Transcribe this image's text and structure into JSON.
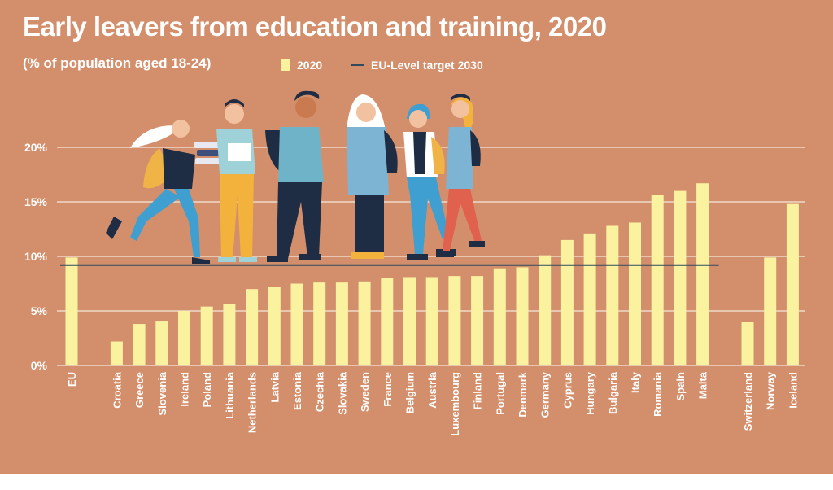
{
  "title": "Early leavers from education and training, 2020",
  "subtitle": "(% of population aged 18-24)",
  "legend": {
    "bar_label": "2020",
    "line_label": "EU-Level target 2030"
  },
  "colors": {
    "background": "#d38f6c",
    "bar": "#fbf2a0",
    "target_line": "#2f4a5e",
    "grid": "#f3e6dc",
    "text": "#ffffff"
  },
  "chart_data": {
    "type": "bar",
    "title": "Early leavers from education and training, 2020",
    "subtitle": "(% of population aged 18-24)",
    "xlabel": "",
    "ylabel": "",
    "ylim": [
      0,
      20
    ],
    "yticks": [
      0,
      5,
      10,
      15,
      20
    ],
    "ytick_labels": [
      "0%",
      "5%",
      "10%",
      "15%",
      "20%"
    ],
    "grid": true,
    "legend_position": "top",
    "categories": [
      "EU",
      "Croatia",
      "Greece",
      "Slovenia",
      "Ireland",
      "Poland",
      "Lithuania",
      "Netherlands",
      "Latvia",
      "Estonia",
      "Czechia",
      "Slovakia",
      "Sweden",
      "France",
      "Belgium",
      "Austria",
      "Luxembourg",
      "Finland",
      "Portugal",
      "Denmark",
      "Germany",
      "Cyprus",
      "Hungary",
      "Bulgaria",
      "Italy",
      "Romania",
      "Spain",
      "Malta",
      "Switzerland",
      "Norway",
      "Iceland"
    ],
    "series": [
      {
        "name": "2020",
        "values": [
          9.9,
          2.2,
          3.8,
          4.1,
          5.0,
          5.4,
          5.6,
          7.0,
          7.2,
          7.5,
          7.6,
          7.6,
          7.7,
          8.0,
          8.1,
          8.1,
          8.2,
          8.2,
          8.9,
          9.0,
          10.1,
          11.5,
          12.1,
          12.8,
          13.1,
          15.6,
          16.0,
          16.7,
          4.0,
          9.9,
          14.8
        ]
      }
    ],
    "target_line": {
      "name": "EU-Level target 2030",
      "value": 9.2
    }
  }
}
